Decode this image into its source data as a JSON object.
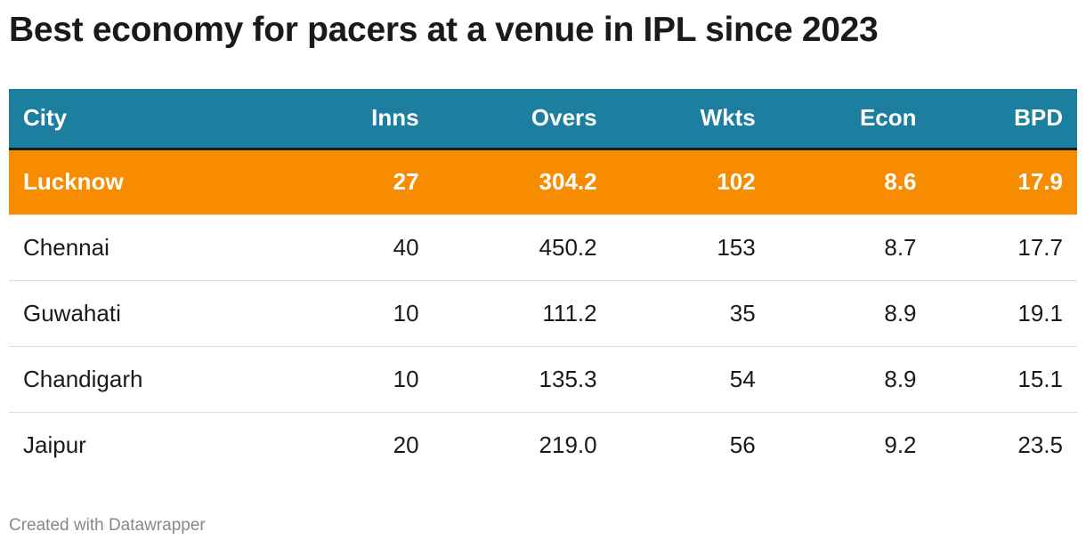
{
  "header": {
    "title": "Best economy for pacers at a venue in IPL since 2023"
  },
  "table": {
    "columns": [
      "City",
      "Inns",
      "Overs",
      "Wkts",
      "Econ",
      "BPD"
    ],
    "rows": [
      [
        "Lucknow",
        "27",
        "304.2",
        "102",
        "8.6",
        "17.9"
      ],
      [
        "Chennai",
        "40",
        "450.2",
        "153",
        "8.7",
        "17.7"
      ],
      [
        "Guwahati",
        "10",
        "111.2",
        "35",
        "8.9",
        "19.1"
      ],
      [
        "Chandigarh",
        "10",
        "135.3",
        "54",
        "8.9",
        "15.1"
      ],
      [
        "Jaipur",
        "20",
        "219.0",
        "56",
        "9.2",
        "23.5"
      ]
    ],
    "highlight_row": 0
  },
  "footer": {
    "credit": "Created with Datawrapper"
  }
}
